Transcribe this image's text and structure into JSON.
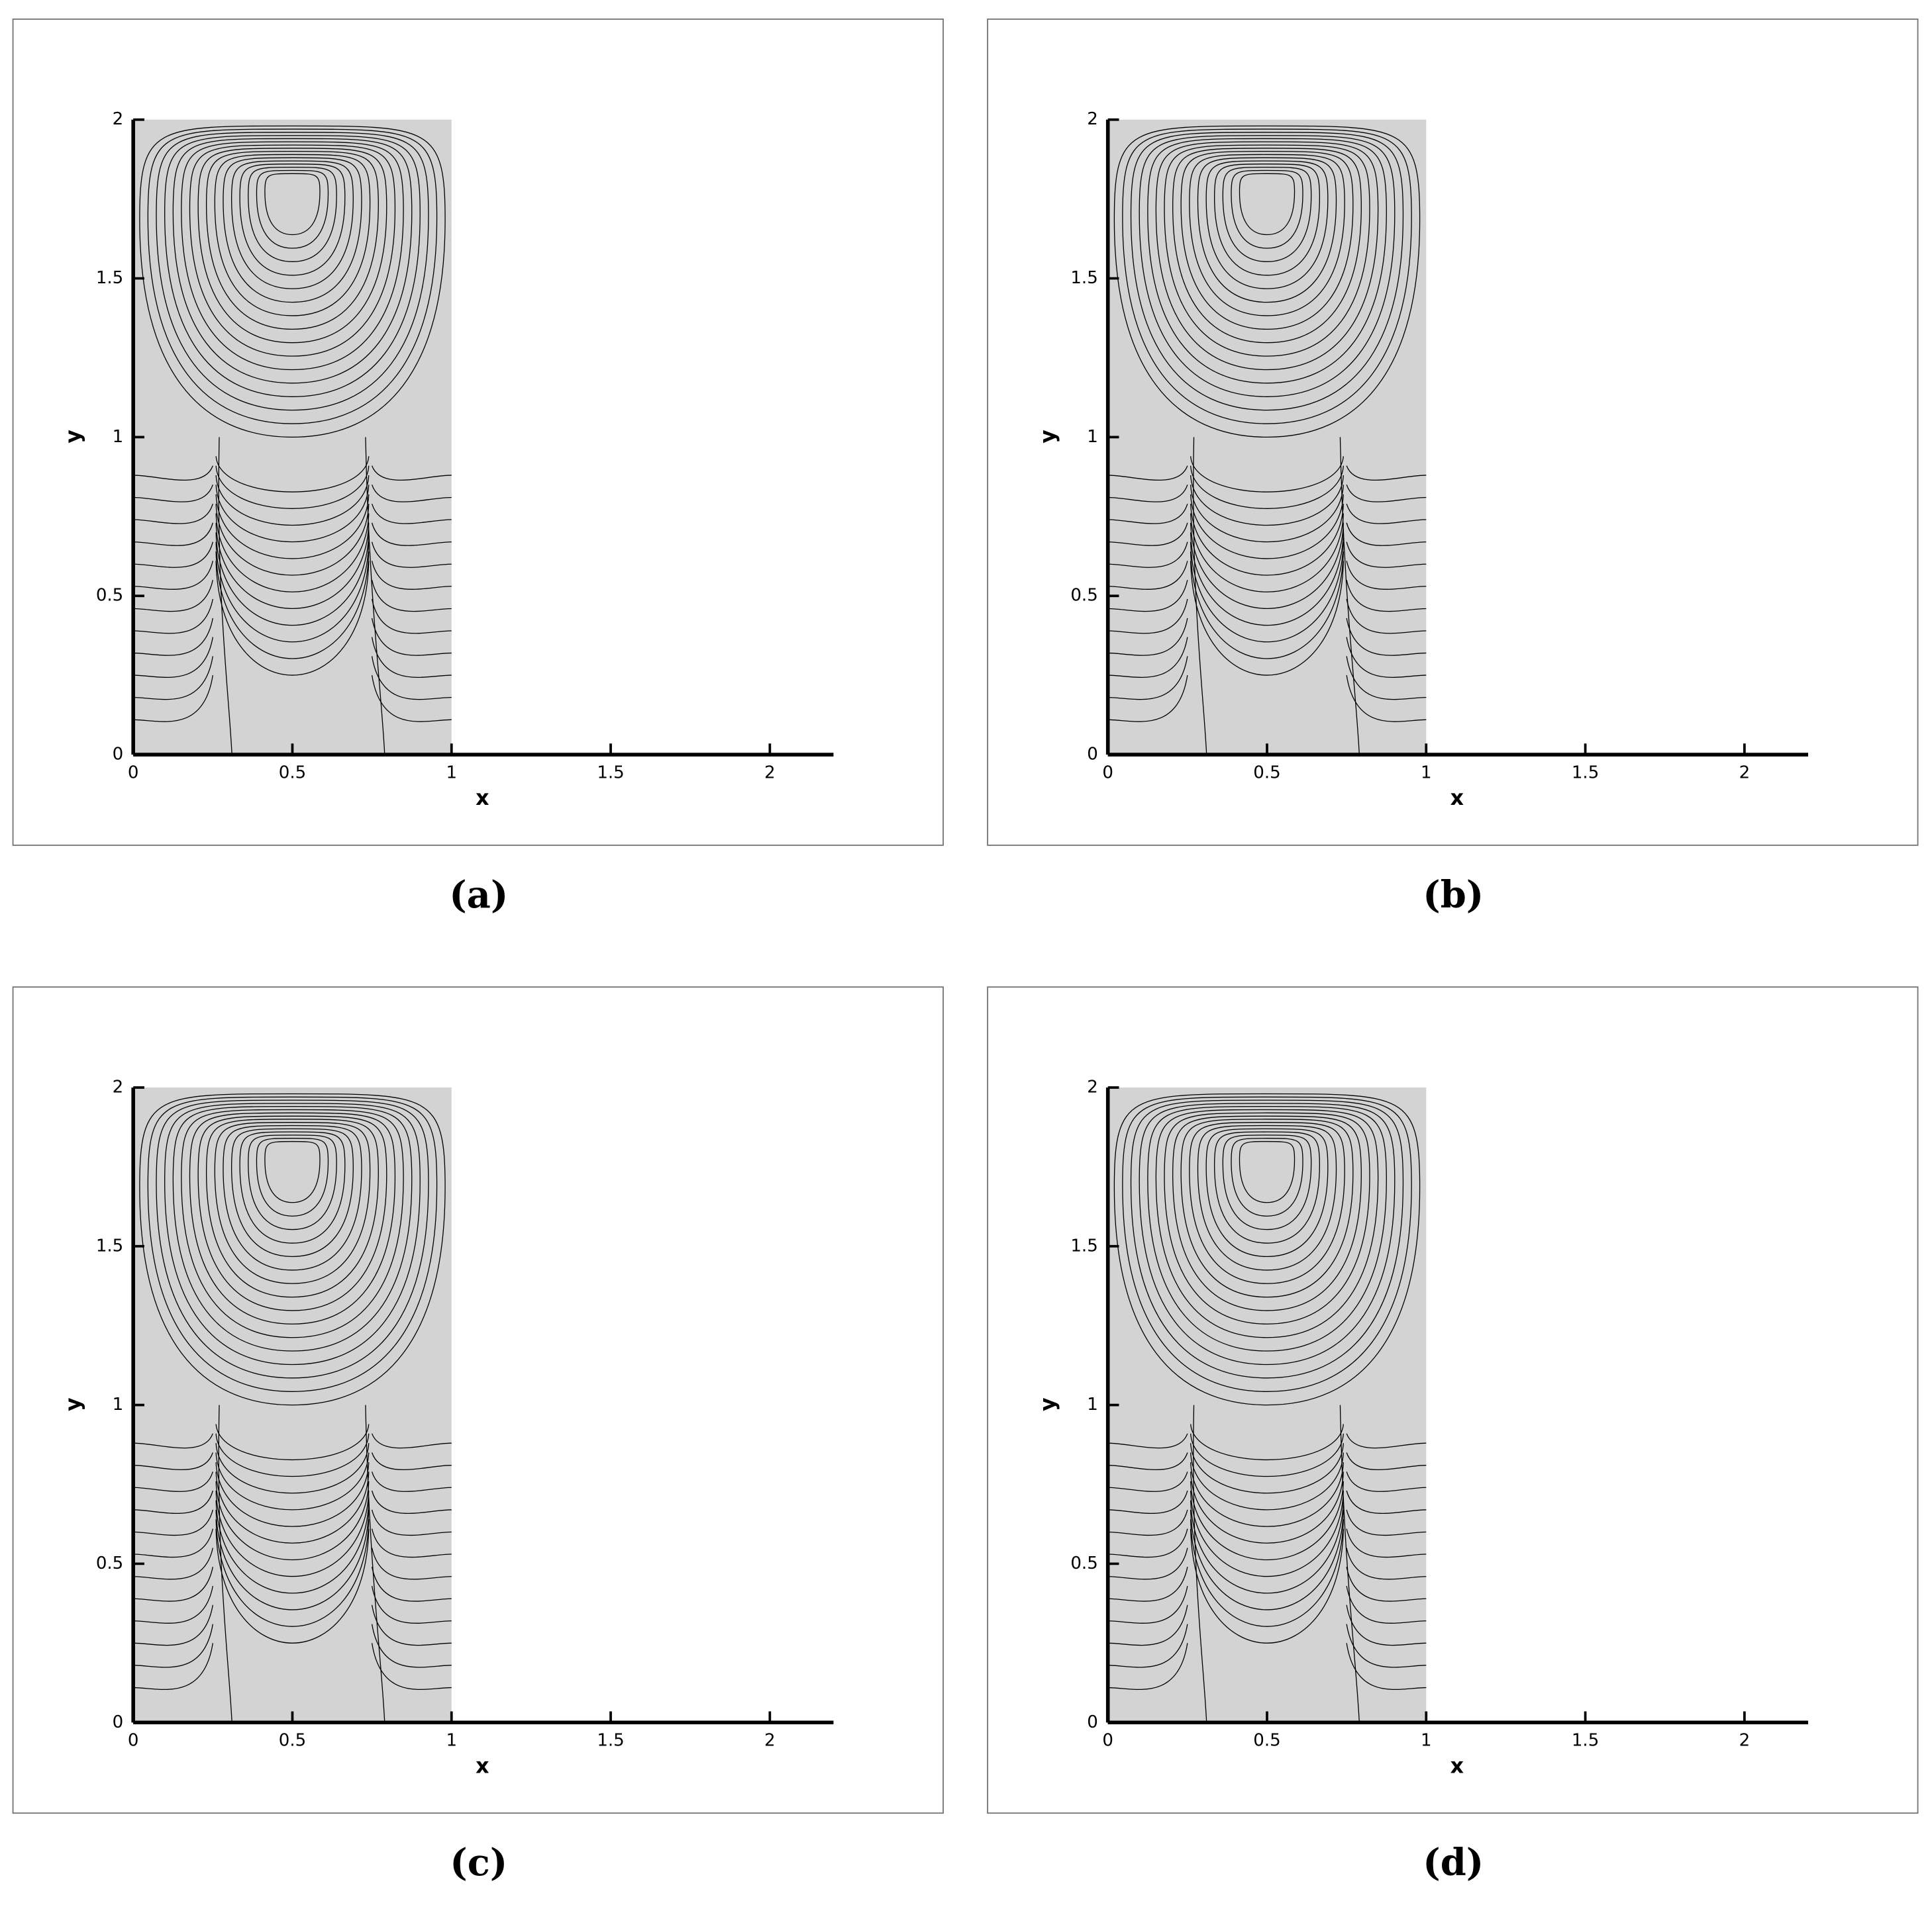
{
  "chart_data": [
    {
      "type": "streamline",
      "x_label": "x",
      "y_label": "y",
      "xlim": [
        0,
        2.2
      ],
      "ylim": [
        0,
        2
      ],
      "xticks": [
        0,
        0.5,
        1,
        1.5,
        2
      ],
      "yticks": [
        0,
        0.5,
        1,
        1.5,
        2
      ],
      "fluid_region": {
        "x": [
          0,
          1
        ],
        "y": [
          0,
          2
        ]
      },
      "caption": "(a)"
    },
    {
      "type": "streamline",
      "x_label": "x",
      "y_label": "y",
      "xlim": [
        0,
        2.2
      ],
      "ylim": [
        0,
        2
      ],
      "xticks": [
        0,
        0.5,
        1,
        1.5,
        2
      ],
      "yticks": [
        0,
        0.5,
        1,
        1.5,
        2
      ],
      "fluid_region": {
        "x": [
          0,
          1
        ],
        "y": [
          0,
          2
        ]
      },
      "caption": "(b)"
    },
    {
      "type": "streamline",
      "x_label": "x",
      "y_label": "y",
      "xlim": [
        0,
        2.2
      ],
      "ylim": [
        0,
        2
      ],
      "xticks": [
        0,
        0.5,
        1,
        1.5,
        2
      ],
      "yticks": [
        0,
        0.5,
        1,
        1.5,
        2
      ],
      "fluid_region": {
        "x": [
          0,
          1
        ],
        "y": [
          0,
          2
        ]
      },
      "caption": "(c)"
    },
    {
      "type": "streamline",
      "x_label": "x",
      "y_label": "y",
      "xlim": [
        0,
        2.2
      ],
      "ylim": [
        0,
        2
      ],
      "xticks": [
        0,
        0.5,
        1,
        1.5,
        2
      ],
      "yticks": [
        0,
        0.5,
        1,
        1.5,
        2
      ],
      "fluid_region": {
        "x": [
          0,
          1
        ],
        "y": [
          0,
          2
        ]
      },
      "caption": "(d)"
    }
  ]
}
